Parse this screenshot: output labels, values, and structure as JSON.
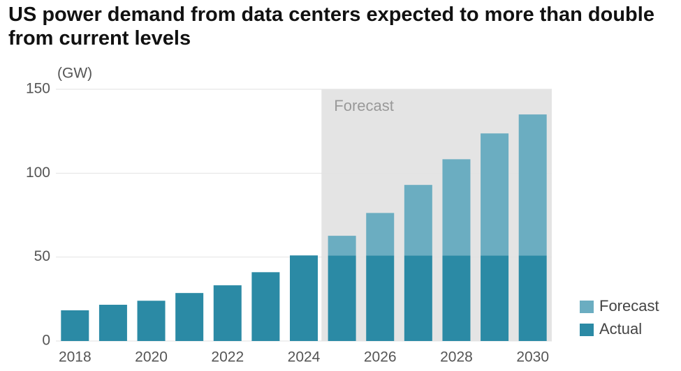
{
  "chart_data": {
    "type": "stacked_bar",
    "title": "US power demand from data centers expected to more than double from current levels",
    "y_label": "(GW)",
    "annotation": "Forecast",
    "categories": [
      "2018",
      null,
      "2020",
      null,
      "2022",
      null,
      "2024",
      null,
      "2026",
      null,
      "2028",
      null,
      "2030"
    ],
    "series": [
      {
        "name": "Actual",
        "color": "#2b8aa5",
        "values": [
          18.3,
          21.6,
          24,
          28.6,
          33.2,
          41,
          51,
          51,
          51,
          51,
          51,
          51,
          51
        ]
      },
      {
        "name": "Forecast",
        "color": "#6badc1",
        "values": [
          null,
          null,
          null,
          null,
          null,
          null,
          null,
          11.7,
          25.3,
          42,
          57.3,
          72.7,
          84
        ]
      }
    ],
    "ylim": [
      0,
      150
    ],
    "yticks": [
      0,
      50,
      100,
      150
    ],
    "grid": true
  }
}
